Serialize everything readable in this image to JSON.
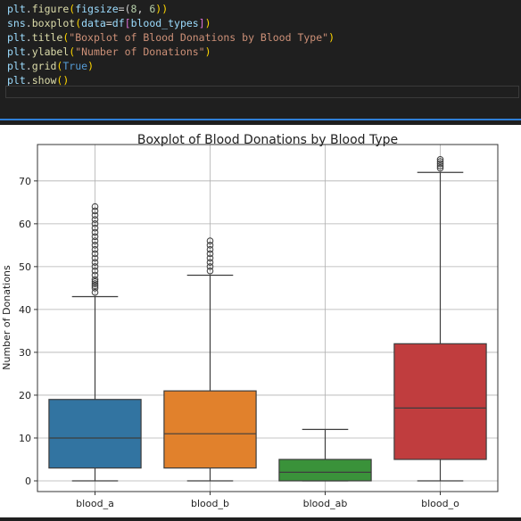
{
  "code": {
    "lines": [
      [
        {
          "t": "plt",
          "c": "#9cdcfe"
        },
        {
          "t": ".",
          "c": "#d4d4d4"
        },
        {
          "t": "figure",
          "c": "#dcdcaa"
        },
        {
          "t": "(",
          "c": "#ffd700"
        },
        {
          "t": "figsize",
          "c": "#9cdcfe"
        },
        {
          "t": "=(",
          "c": "#d4d4d4"
        },
        {
          "t": "8",
          "c": "#b5cea8"
        },
        {
          "t": ", ",
          "c": "#d4d4d4"
        },
        {
          "t": "6",
          "c": "#b5cea8"
        },
        {
          "t": "))",
          "c": "#ffd700"
        }
      ],
      [
        {
          "t": "sns",
          "c": "#9cdcfe"
        },
        {
          "t": ".",
          "c": "#d4d4d4"
        },
        {
          "t": "boxplot",
          "c": "#dcdcaa"
        },
        {
          "t": "(",
          "c": "#ffd700"
        },
        {
          "t": "data",
          "c": "#9cdcfe"
        },
        {
          "t": "=",
          "c": "#d4d4d4"
        },
        {
          "t": "df",
          "c": "#9cdcfe"
        },
        {
          "t": "[",
          "c": "#da70d6"
        },
        {
          "t": "blood_types",
          "c": "#9cdcfe"
        },
        {
          "t": "]",
          "c": "#da70d6"
        },
        {
          "t": ")",
          "c": "#ffd700"
        }
      ],
      [
        {
          "t": "plt",
          "c": "#9cdcfe"
        },
        {
          "t": ".",
          "c": "#d4d4d4"
        },
        {
          "t": "title",
          "c": "#dcdcaa"
        },
        {
          "t": "(",
          "c": "#ffd700"
        },
        {
          "t": "\"Boxplot of Blood Donations by Blood Type\"",
          "c": "#ce9178"
        },
        {
          "t": ")",
          "c": "#ffd700"
        }
      ],
      [
        {
          "t": "plt",
          "c": "#9cdcfe"
        },
        {
          "t": ".",
          "c": "#d4d4d4"
        },
        {
          "t": "ylabel",
          "c": "#dcdcaa"
        },
        {
          "t": "(",
          "c": "#ffd700"
        },
        {
          "t": "\"Number of Donations\"",
          "c": "#ce9178"
        },
        {
          "t": ")",
          "c": "#ffd700"
        }
      ],
      [
        {
          "t": "plt",
          "c": "#9cdcfe"
        },
        {
          "t": ".",
          "c": "#d4d4d4"
        },
        {
          "t": "grid",
          "c": "#dcdcaa"
        },
        {
          "t": "(",
          "c": "#ffd700"
        },
        {
          "t": "True",
          "c": "#569cd6"
        },
        {
          "t": ")",
          "c": "#ffd700"
        }
      ],
      [
        {
          "t": "plt",
          "c": "#9cdcfe"
        },
        {
          "t": ".",
          "c": "#d4d4d4"
        },
        {
          "t": "show",
          "c": "#dcdcaa"
        },
        {
          "t": "()",
          "c": "#ffd700"
        }
      ]
    ]
  },
  "chart_data": {
    "type": "box",
    "title": "Boxplot of Blood Donations by Blood Type",
    "ylabel": "Number of Donations",
    "xlabel": "",
    "ylim": [
      -2.5,
      78.5
    ],
    "yticks": [
      0,
      10,
      20,
      30,
      40,
      50,
      60,
      70
    ],
    "grid": true,
    "categories": [
      "blood_a",
      "blood_b",
      "blood_ab",
      "blood_o"
    ],
    "boxes": [
      {
        "name": "blood_a",
        "color": "#3274a1",
        "min": 0,
        "q1": 3,
        "median": 10,
        "q3": 19,
        "max": 43,
        "outliers": [
          44,
          45,
          45.5,
          46,
          46.5,
          47,
          48,
          49,
          50,
          51,
          52,
          53,
          54,
          55,
          56,
          57,
          58,
          59,
          60,
          61,
          62,
          63,
          64
        ]
      },
      {
        "name": "blood_b",
        "color": "#e1812c",
        "min": 0,
        "q1": 3,
        "median": 11,
        "q3": 21,
        "max": 48,
        "outliers": [
          49,
          50,
          51,
          52,
          53,
          54,
          55,
          56
        ]
      },
      {
        "name": "blood_ab",
        "color": "#3a923a",
        "min": 0,
        "q1": 0,
        "median": 2,
        "q3": 5,
        "max": 12,
        "outliers": []
      },
      {
        "name": "blood_o",
        "color": "#c03d3e",
        "min": 0,
        "q1": 5,
        "median": 17,
        "q3": 32,
        "max": 72,
        "outliers": [
          73,
          73.5,
          74,
          74.5,
          75
        ]
      }
    ]
  }
}
